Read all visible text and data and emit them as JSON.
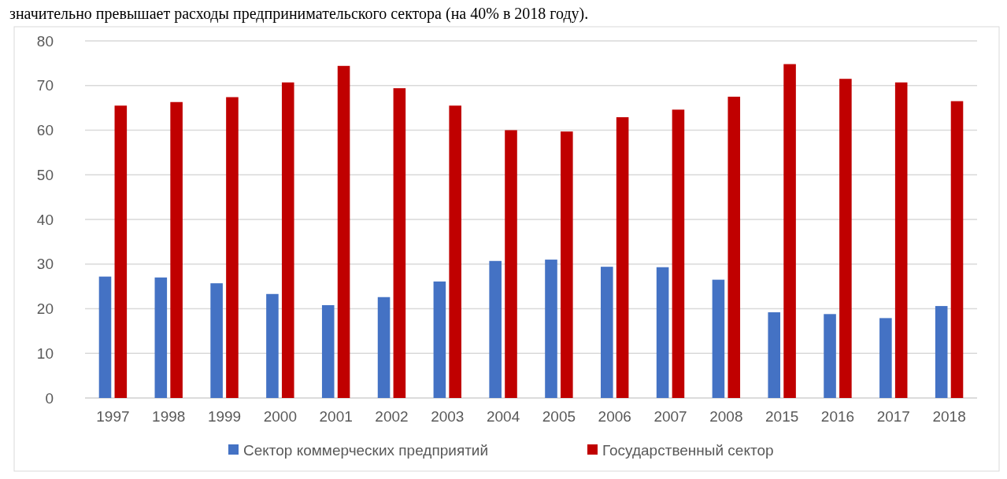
{
  "chart_data": {
    "type": "bar",
    "annotations": [
      "значительно превышает расходы предпринимательского сектора (на 40% в 2018 году)."
    ],
    "categories": [
      "1997",
      "1998",
      "1999",
      "2000",
      "2001",
      "2002",
      "2003",
      "2004",
      "2005",
      "2006",
      "2007",
      "2008",
      "2015",
      "2016",
      "2017",
      "2018"
    ],
    "series": [
      {
        "name": "Сектор коммерческих предприятий",
        "color": "#4472c4",
        "values": [
          27.2,
          27.0,
          25.7,
          23.3,
          20.8,
          22.6,
          26.1,
          30.7,
          31.0,
          29.4,
          29.3,
          26.5,
          19.2,
          18.8,
          17.9,
          20.6
        ]
      },
      {
        "name": "Государственный сектор",
        "color": "#c00000",
        "values": [
          65.5,
          66.3,
          67.4,
          70.7,
          74.4,
          69.4,
          65.5,
          60.0,
          59.7,
          62.9,
          64.6,
          67.5,
          74.8,
          71.5,
          70.7,
          66.5
        ]
      }
    ],
    "ylim": [
      0,
      80
    ],
    "yticks": [
      0,
      10,
      20,
      30,
      40,
      50,
      60,
      70,
      80
    ],
    "grid": "y",
    "legend": "bottom"
  }
}
